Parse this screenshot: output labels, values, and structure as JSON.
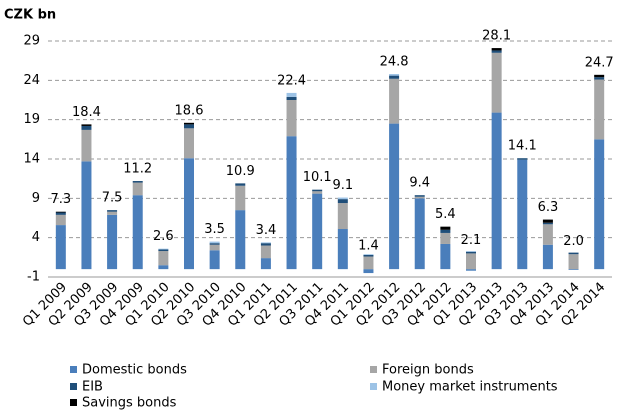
{
  "chart_data": {
    "type": "stacked_bar",
    "y_axis_title": "CZK bn",
    "categories": [
      "Q1 2009",
      "Q2 2009",
      "Q3 2009",
      "Q4 2009",
      "Q1 2010",
      "Q2 2010",
      "Q3 2010",
      "Q4 2010",
      "Q1 2011",
      "Q2 2011",
      "Q3 2011",
      "Q4 2011",
      "Q1 2012",
      "Q2 2012",
      "Q3 2012",
      "Q4 2012",
      "Q1 2013",
      "Q2 2013",
      "Q3 2013",
      "Q4 2013",
      "Q1 2014",
      "Q2 2014"
    ],
    "series": [
      {
        "name": "Domestic bonds",
        "color": "#4a7ebb",
        "values": [
          5.6,
          13.7,
          6.9,
          9.4,
          0.5,
          14.1,
          2.4,
          7.5,
          1.4,
          16.9,
          9.6,
          5.1,
          -0.5,
          18.5,
          9.0,
          3.2,
          -0.2,
          19.9,
          13.9,
          3.1,
          -0.1,
          16.5
        ]
      },
      {
        "name": "Foreign bonds",
        "color": "#a6a6a6",
        "values": [
          1.3,
          4.0,
          0.4,
          1.6,
          1.8,
          3.8,
          0.7,
          3.1,
          1.6,
          4.6,
          0.3,
          3.3,
          1.6,
          5.7,
          0.2,
          1.4,
          2.0,
          7.6,
          0,
          2.6,
          1.9,
          7.6
        ]
      },
      {
        "name": "EIB",
        "color": "#1f4e79",
        "values": [
          0.3,
          0.5,
          0.2,
          0.2,
          0.2,
          0.5,
          0.2,
          0.3,
          0.3,
          0.4,
          0.2,
          0.5,
          0.2,
          0.4,
          0.2,
          0.4,
          0.2,
          0.3,
          0.2,
          0.2,
          0.2,
          0.3
        ]
      },
      {
        "name": "Money market instruments",
        "color": "#9dc3e6",
        "values": [
          0,
          0,
          0,
          0,
          0.1,
          0,
          0.2,
          0,
          0.1,
          0.5,
          0,
          0.2,
          0.1,
          0.2,
          0,
          0,
          0.1,
          0,
          0,
          0,
          0,
          0
        ]
      },
      {
        "name": "Savings bonds",
        "color": "#000000",
        "values": [
          0.1,
          0.2,
          0,
          0,
          0,
          0.2,
          0,
          0,
          0,
          0,
          0,
          0,
          0,
          0,
          0,
          0.4,
          0,
          0.3,
          0,
          0.4,
          0,
          0.3
        ]
      }
    ],
    "totals": [
      7.3,
      18.4,
      7.5,
      11.2,
      2.6,
      18.6,
      3.5,
      10.9,
      3.4,
      22.4,
      10.1,
      9.1,
      1.4,
      24.8,
      9.4,
      5.4,
      2.1,
      28.1,
      14.1,
      6.3,
      2.0,
      24.7
    ],
    "total_labels": [
      "7.3",
      "18.4",
      "7.5",
      "11.2",
      "2.6",
      "18.6",
      "3.5",
      "10.9",
      "3.4",
      "22.4",
      "10.1",
      "9.1",
      "1.4",
      "24.8",
      "9.4",
      "5.4",
      "2.1",
      "28.1",
      "14.1",
      "6.3",
      "2.0",
      "24.7"
    ],
    "ylim": [
      -1,
      29
    ],
    "yticks": [
      -1,
      4,
      9,
      14,
      19,
      24,
      29
    ],
    "grid": true
  }
}
